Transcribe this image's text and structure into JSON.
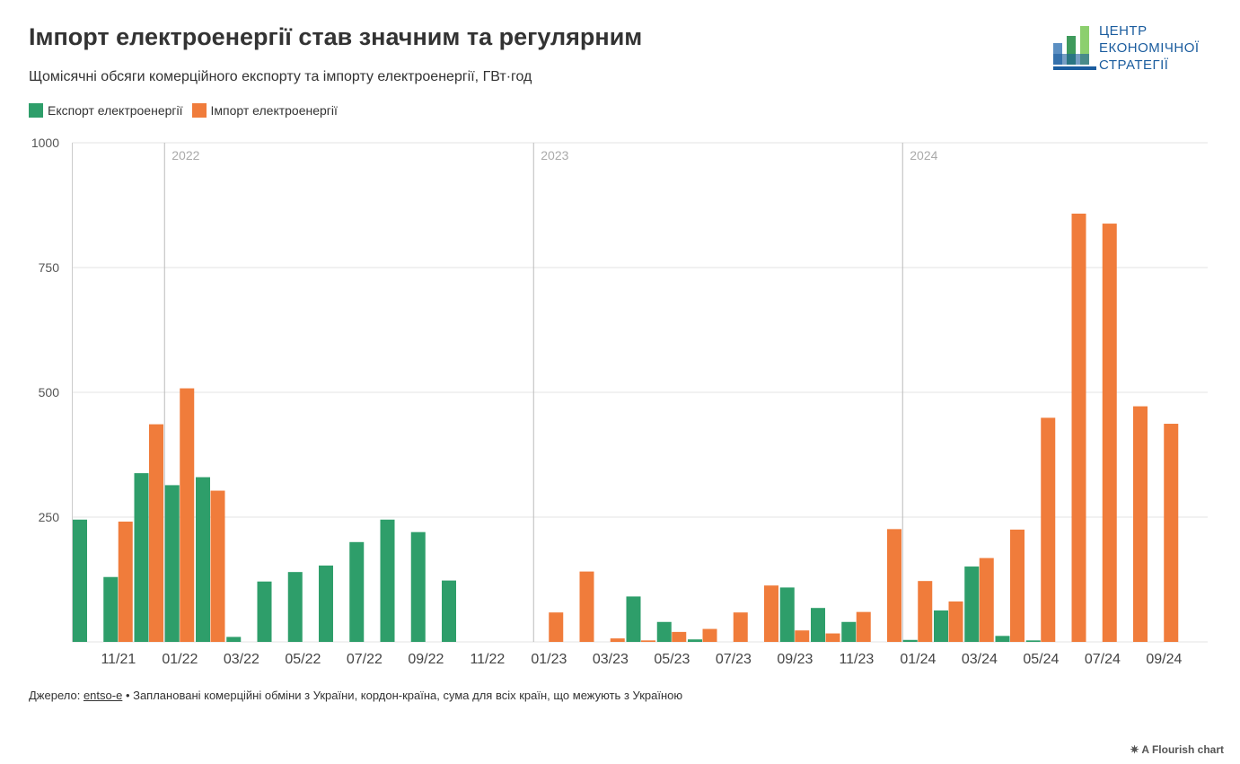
{
  "header": {
    "title": "Імпорт електроенергії став значним та регулярним",
    "subtitle": "Щомісячні обсяги комерційного експорту та імпорту електроенергії, ГВт·год"
  },
  "logo": {
    "lines": [
      "ЦЕНТР",
      "ЕКОНОМІЧНОЇ",
      "СТРАТЕГІЇ"
    ]
  },
  "colors": {
    "export": "#2e9e6a",
    "import": "#f07c3b"
  },
  "chart_data": {
    "type": "bar",
    "title": "Імпорт електроенергії став значним та регулярним",
    "xlabel": "",
    "ylabel": "",
    "ylim": [
      0,
      1000
    ],
    "yticks": [
      0,
      250,
      500,
      750,
      1000
    ],
    "ytick_labels": [
      "",
      "250",
      "500",
      "750",
      "1000"
    ],
    "grid": true,
    "legend": "top-left",
    "categories": [
      "10/21",
      "11/21",
      "12/21",
      "01/22",
      "02/22",
      "03/22",
      "04/22",
      "05/22",
      "06/22",
      "07/22",
      "08/22",
      "09/22",
      "10/22",
      "11/22",
      "12/22",
      "01/23",
      "02/23",
      "03/23",
      "04/23",
      "05/23",
      "06/23",
      "07/23",
      "08/23",
      "09/23",
      "10/23",
      "11/23",
      "12/23",
      "01/24",
      "02/24",
      "03/24",
      "04/24",
      "05/24",
      "06/24",
      "07/24",
      "08/24",
      "09/24"
    ],
    "xtick_labels": [
      "11/21",
      "01/22",
      "03/22",
      "05/22",
      "07/22",
      "09/22",
      "11/22",
      "01/23",
      "03/23",
      "05/23",
      "07/23",
      "09/23",
      "11/23",
      "01/24",
      "03/24",
      "05/24",
      "07/24",
      "09/24"
    ],
    "year_markers": [
      {
        "label": "2022",
        "at": "01/22"
      },
      {
        "label": "2023",
        "at": "01/23"
      },
      {
        "label": "2024",
        "at": "01/24"
      }
    ],
    "series": [
      {
        "name": "Експорт електроенергії",
        "values": [
          245,
          130,
          338,
          314,
          330,
          10,
          121,
          140,
          153,
          200,
          245,
          220,
          123,
          0,
          0,
          0,
          0,
          0,
          91,
          40,
          5,
          0,
          0,
          109,
          68,
          40,
          0,
          4,
          63,
          151,
          12,
          3,
          0,
          0,
          0,
          0
        ]
      },
      {
        "name": "Імпорт електроенергії",
        "values": [
          0,
          241,
          436,
          508,
          303,
          0,
          0,
          0,
          0,
          0,
          0,
          0,
          0,
          0,
          0,
          59,
          141,
          7,
          3,
          20,
          26,
          59,
          113,
          23,
          17,
          60,
          226,
          122,
          81,
          168,
          225,
          449,
          858,
          838,
          472,
          437
        ]
      }
    ]
  },
  "footer": {
    "source_prefix": "Джерело: ",
    "source_link": "entso-e",
    "source_text": " • Заплановані комерційні обміни з України, кордон-країна, сума для всіх країн, що межують з Україною",
    "credit": "A Flourish chart"
  }
}
